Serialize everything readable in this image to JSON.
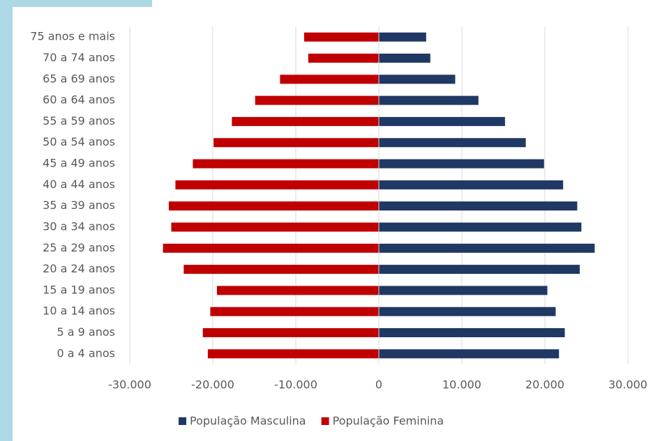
{
  "chart_data": {
    "type": "pyramid",
    "categories": [
      "0 a 4 anos",
      "5 a 9 anos",
      "10 a 14 anos",
      "15 a 19 anos",
      "20 a 24 anos",
      "25 a 29 anos",
      "30 a 34 anos",
      "35 a 39 anos",
      "40 a 44 anos",
      "45 a 49 anos",
      "50 a 54 anos",
      "55 a 59 anos",
      "60 a 64 anos",
      "65 a 69 anos",
      "70 a 74 anos",
      "75 anos e mais"
    ],
    "series": [
      {
        "name": "População Masculina",
        "color": "#1f3864",
        "values": [
          21700,
          22400,
          21300,
          20300,
          24200,
          26000,
          24400,
          23900,
          22200,
          19900,
          17700,
          15200,
          12000,
          9200,
          6200,
          5700
        ]
      },
      {
        "name": "População Feminina",
        "color": "#c00000",
        "values": [
          -20600,
          -21200,
          -20300,
          -19500,
          -23500,
          -26000,
          -25000,
          -25300,
          -24500,
          -22400,
          -19900,
          -17700,
          -14900,
          -11900,
          -8500,
          -9000
        ]
      }
    ],
    "xlim": [
      -30000,
      30000
    ],
    "xticks": [
      {
        "value": -30000,
        "label": "-30.000"
      },
      {
        "value": -20000,
        "label": "-20.000"
      },
      {
        "value": -10000,
        "label": "-10.000"
      },
      0,
      {
        "value": 10000,
        "label": "10.000"
      },
      {
        "value": 20000,
        "label": "20.000"
      },
      {
        "value": 30000,
        "label": "30.000"
      }
    ],
    "grid": true
  }
}
